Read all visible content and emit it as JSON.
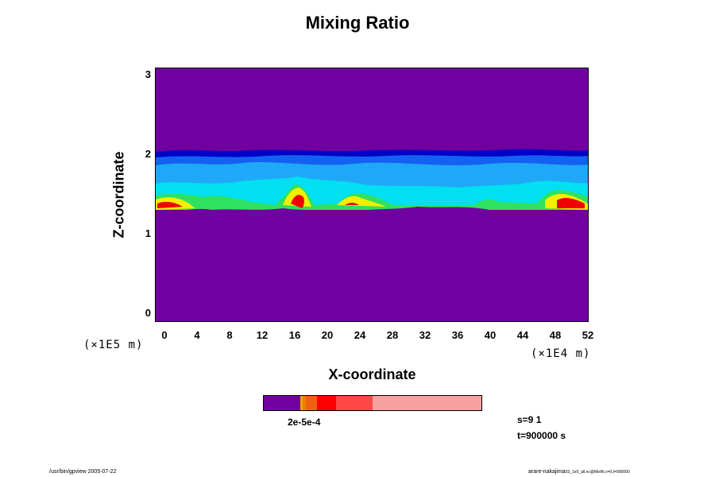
{
  "chart_data": {
    "type": "heatmap",
    "title": "Mixing Ratio",
    "xlabel": "X-coordinate",
    "ylabel": "Z-coordinate",
    "xscale_text": "(×1E4 m)",
    "yscale_text": "(×1E5 m)",
    "x_ticks": [
      "0",
      "4",
      "8",
      "12",
      "16",
      "20",
      "24",
      "28",
      "32",
      "36",
      "40",
      "44",
      "48",
      "52"
    ],
    "y_ticks": [
      "0",
      "1",
      "2",
      "3"
    ],
    "xlim": [
      0,
      52
    ],
    "ylim": [
      -0.12,
      3.08
    ],
    "colorbar": {
      "label": "2e-5e-4",
      "colors": [
        "#7000a0",
        "#f0a000",
        "#f08000",
        "#f06010",
        "#ff0000",
        "#ff4848",
        "#f8a0a0"
      ]
    }
  },
  "info": {
    "step": "s=9 1",
    "time": "t=900000 s"
  },
  "footer": {
    "left": "/usr/bin/gpview 2005-07-22",
    "right": "arare-nakajima",
    "right_sub": "03_1e5_all.nc@MixRt,x=0,t=900000"
  },
  "colors": {
    "background_field": "#7000a0",
    "deep_blue": "#0000c8",
    "blue": "#1460f0",
    "light_blue": "#20a8f8",
    "cyan": "#00e0f0",
    "green": "#30e060",
    "yellow": "#f0f000",
    "orange": "#f09000",
    "red": "#f00000"
  }
}
